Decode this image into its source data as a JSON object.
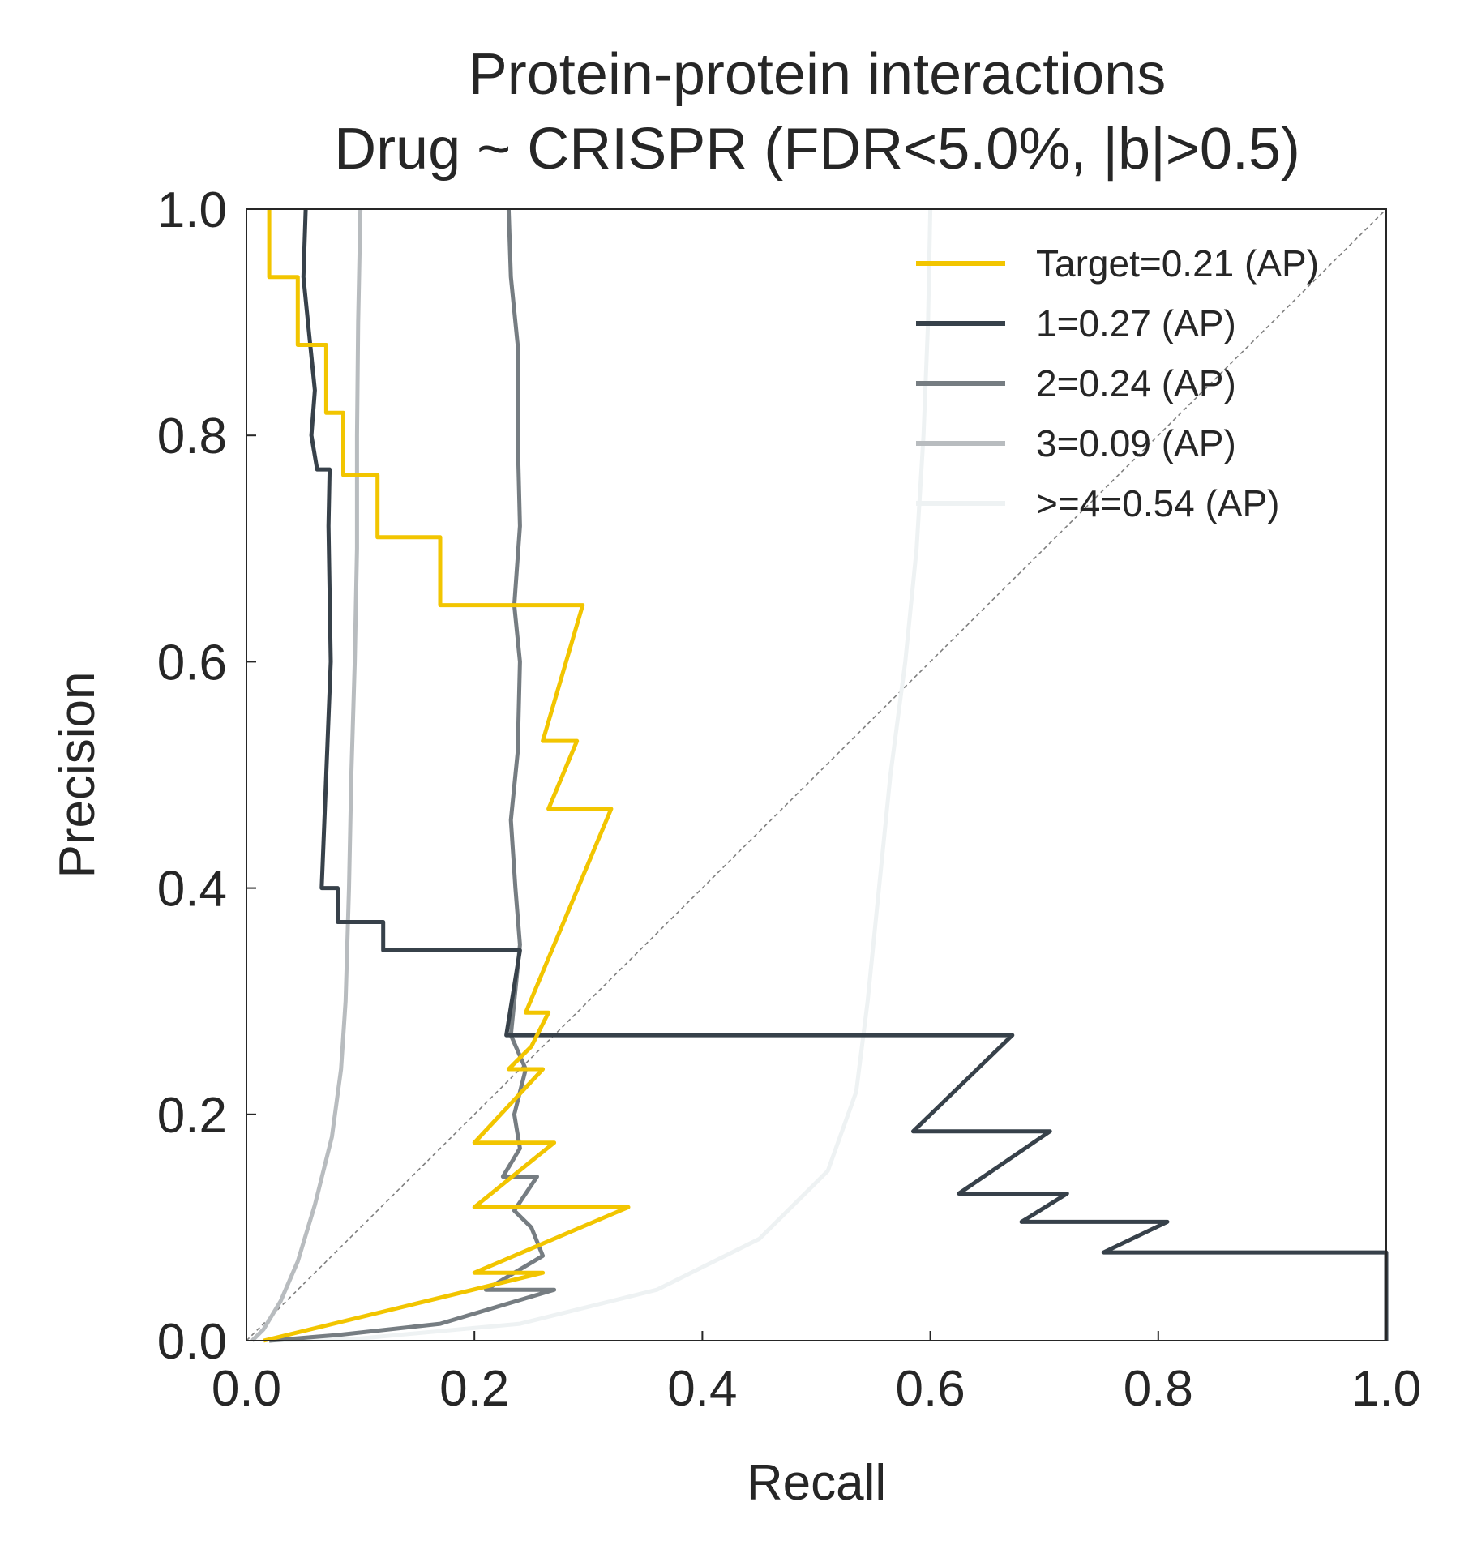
{
  "chart_data": {
    "type": "line",
    "title": [
      "Protein-protein interactions",
      "Drug ~ CRISPR (FDR<5.0%, |b|>0.5)"
    ],
    "xlabel": "Recall",
    "ylabel": "Precision",
    "xlim": [
      0,
      1
    ],
    "ylim": [
      0,
      1
    ],
    "xticks": [
      "0.0",
      "0.2",
      "0.4",
      "0.6",
      "0.8",
      "1.0"
    ],
    "yticks": [
      "0.0",
      "0.2",
      "0.4",
      "0.6",
      "0.8",
      "1.0"
    ],
    "grid": false,
    "legend": "top-right",
    "reference_line": {
      "from": [
        0,
        0
      ],
      "to": [
        1,
        1
      ],
      "color": "#7f7f7f",
      "style": "dashed"
    },
    "series": [
      {
        "name": "Target=0.21 (AP)",
        "color": "#f2c500",
        "points": [
          [
            0.02,
            1.0
          ],
          [
            0.02,
            0.94
          ],
          [
            0.045,
            0.94
          ],
          [
            0.045,
            0.88
          ],
          [
            0.07,
            0.88
          ],
          [
            0.07,
            0.82
          ],
          [
            0.085,
            0.82
          ],
          [
            0.085,
            0.765
          ],
          [
            0.115,
            0.765
          ],
          [
            0.115,
            0.71
          ],
          [
            0.17,
            0.71
          ],
          [
            0.17,
            0.65
          ],
          [
            0.295,
            0.65
          ],
          [
            0.26,
            0.53
          ],
          [
            0.29,
            0.53
          ],
          [
            0.265,
            0.47
          ],
          [
            0.32,
            0.47
          ],
          [
            0.245,
            0.29
          ],
          [
            0.265,
            0.29
          ],
          [
            0.25,
            0.26
          ],
          [
            0.23,
            0.24
          ],
          [
            0.26,
            0.24
          ],
          [
            0.2,
            0.175
          ],
          [
            0.27,
            0.175
          ],
          [
            0.2,
            0.118
          ],
          [
            0.335,
            0.118
          ],
          [
            0.2,
            0.06
          ],
          [
            0.26,
            0.06
          ],
          [
            0.015,
            0.0
          ]
        ]
      },
      {
        "name": "1=0.27 (AP)",
        "color": "#37414a",
        "points": [
          [
            0.052,
            1.0
          ],
          [
            0.05,
            0.94
          ],
          [
            0.055,
            0.89
          ],
          [
            0.06,
            0.84
          ],
          [
            0.057,
            0.8
          ],
          [
            0.062,
            0.77
          ],
          [
            0.073,
            0.77
          ],
          [
            0.072,
            0.72
          ],
          [
            0.073,
            0.66
          ],
          [
            0.074,
            0.6
          ],
          [
            0.07,
            0.5
          ],
          [
            0.066,
            0.4
          ],
          [
            0.08,
            0.4
          ],
          [
            0.08,
            0.37
          ],
          [
            0.12,
            0.37
          ],
          [
            0.12,
            0.345
          ],
          [
            0.24,
            0.345
          ],
          [
            0.228,
            0.27
          ],
          [
            0.672,
            0.27
          ],
          [
            0.585,
            0.185
          ],
          [
            0.705,
            0.185
          ],
          [
            0.625,
            0.13
          ],
          [
            0.72,
            0.13
          ],
          [
            0.68,
            0.105
          ],
          [
            0.808,
            0.105
          ],
          [
            0.752,
            0.078
          ],
          [
            1.0,
            0.078
          ],
          [
            1.0,
            0.0
          ]
        ]
      },
      {
        "name": "2=0.24 (AP)",
        "color": "#767d82",
        "points": [
          [
            0.23,
            1.0
          ],
          [
            0.232,
            0.94
          ],
          [
            0.238,
            0.88
          ],
          [
            0.238,
            0.8
          ],
          [
            0.24,
            0.72
          ],
          [
            0.235,
            0.65
          ],
          [
            0.24,
            0.6
          ],
          [
            0.238,
            0.52
          ],
          [
            0.232,
            0.46
          ],
          [
            0.236,
            0.4
          ],
          [
            0.24,
            0.35
          ],
          [
            0.235,
            0.3
          ],
          [
            0.232,
            0.27
          ],
          [
            0.245,
            0.24
          ],
          [
            0.235,
            0.2
          ],
          [
            0.24,
            0.17
          ],
          [
            0.225,
            0.145
          ],
          [
            0.255,
            0.145
          ],
          [
            0.235,
            0.115
          ],
          [
            0.25,
            0.1
          ],
          [
            0.26,
            0.075
          ],
          [
            0.21,
            0.045
          ],
          [
            0.27,
            0.045
          ],
          [
            0.17,
            0.015
          ],
          [
            0.08,
            0.005
          ],
          [
            0.02,
            0.0
          ]
        ]
      },
      {
        "name": "3=0.09 (AP)",
        "color": "#b8bcbf",
        "points": [
          [
            0.1,
            1.0
          ],
          [
            0.098,
            0.9
          ],
          [
            0.097,
            0.8
          ],
          [
            0.097,
            0.7
          ],
          [
            0.095,
            0.6
          ],
          [
            0.092,
            0.5
          ],
          [
            0.09,
            0.4
          ],
          [
            0.087,
            0.3
          ],
          [
            0.083,
            0.24
          ],
          [
            0.075,
            0.18
          ],
          [
            0.06,
            0.12
          ],
          [
            0.045,
            0.07
          ],
          [
            0.03,
            0.035
          ],
          [
            0.015,
            0.01
          ],
          [
            0.005,
            0.0
          ]
        ]
      },
      {
        "name": ">=4=0.54 (AP)",
        "color": "#eef2f3",
        "points": [
          [
            0.6,
            1.0
          ],
          [
            0.598,
            0.9
          ],
          [
            0.594,
            0.8
          ],
          [
            0.588,
            0.7
          ],
          [
            0.578,
            0.6
          ],
          [
            0.565,
            0.5
          ],
          [
            0.555,
            0.4
          ],
          [
            0.545,
            0.3
          ],
          [
            0.535,
            0.22
          ],
          [
            0.51,
            0.15
          ],
          [
            0.45,
            0.09
          ],
          [
            0.36,
            0.045
          ],
          [
            0.24,
            0.015
          ],
          [
            0.1,
            0.002
          ],
          [
            0.02,
            0.0
          ]
        ]
      }
    ]
  }
}
